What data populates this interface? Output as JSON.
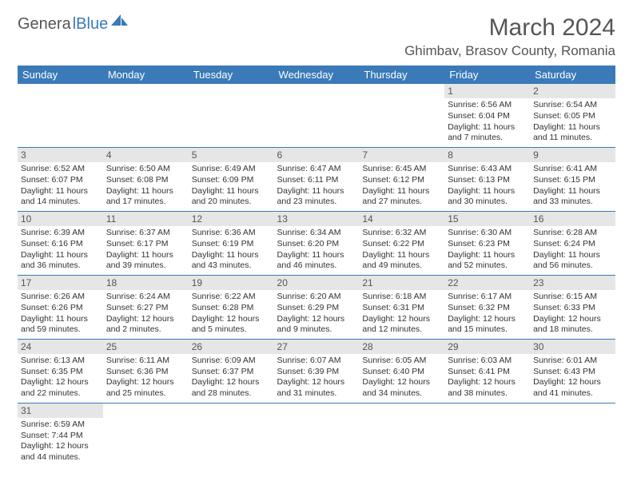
{
  "logo": {
    "part1": "Genera",
    "part2": "lBlue"
  },
  "title": "March 2024",
  "location": "Ghimbav, Brasov County, Romania",
  "colors": {
    "header_bg": "#3a7ab8",
    "header_text": "#ffffff",
    "daynum_bg": "#e6e6e6",
    "text": "#333333",
    "title_text": "#555555"
  },
  "weekdays": [
    "Sunday",
    "Monday",
    "Tuesday",
    "Wednesday",
    "Thursday",
    "Friday",
    "Saturday"
  ],
  "weeks": [
    [
      null,
      null,
      null,
      null,
      null,
      {
        "n": "1",
        "sunrise": "Sunrise: 6:56 AM",
        "sunset": "Sunset: 6:04 PM",
        "daylight": "Daylight: 11 hours and 7 minutes."
      },
      {
        "n": "2",
        "sunrise": "Sunrise: 6:54 AM",
        "sunset": "Sunset: 6:05 PM",
        "daylight": "Daylight: 11 hours and 11 minutes."
      }
    ],
    [
      {
        "n": "3",
        "sunrise": "Sunrise: 6:52 AM",
        "sunset": "Sunset: 6:07 PM",
        "daylight": "Daylight: 11 hours and 14 minutes."
      },
      {
        "n": "4",
        "sunrise": "Sunrise: 6:50 AM",
        "sunset": "Sunset: 6:08 PM",
        "daylight": "Daylight: 11 hours and 17 minutes."
      },
      {
        "n": "5",
        "sunrise": "Sunrise: 6:49 AM",
        "sunset": "Sunset: 6:09 PM",
        "daylight": "Daylight: 11 hours and 20 minutes."
      },
      {
        "n": "6",
        "sunrise": "Sunrise: 6:47 AM",
        "sunset": "Sunset: 6:11 PM",
        "daylight": "Daylight: 11 hours and 23 minutes."
      },
      {
        "n": "7",
        "sunrise": "Sunrise: 6:45 AM",
        "sunset": "Sunset: 6:12 PM",
        "daylight": "Daylight: 11 hours and 27 minutes."
      },
      {
        "n": "8",
        "sunrise": "Sunrise: 6:43 AM",
        "sunset": "Sunset: 6:13 PM",
        "daylight": "Daylight: 11 hours and 30 minutes."
      },
      {
        "n": "9",
        "sunrise": "Sunrise: 6:41 AM",
        "sunset": "Sunset: 6:15 PM",
        "daylight": "Daylight: 11 hours and 33 minutes."
      }
    ],
    [
      {
        "n": "10",
        "sunrise": "Sunrise: 6:39 AM",
        "sunset": "Sunset: 6:16 PM",
        "daylight": "Daylight: 11 hours and 36 minutes."
      },
      {
        "n": "11",
        "sunrise": "Sunrise: 6:37 AM",
        "sunset": "Sunset: 6:17 PM",
        "daylight": "Daylight: 11 hours and 39 minutes."
      },
      {
        "n": "12",
        "sunrise": "Sunrise: 6:36 AM",
        "sunset": "Sunset: 6:19 PM",
        "daylight": "Daylight: 11 hours and 43 minutes."
      },
      {
        "n": "13",
        "sunrise": "Sunrise: 6:34 AM",
        "sunset": "Sunset: 6:20 PM",
        "daylight": "Daylight: 11 hours and 46 minutes."
      },
      {
        "n": "14",
        "sunrise": "Sunrise: 6:32 AM",
        "sunset": "Sunset: 6:22 PM",
        "daylight": "Daylight: 11 hours and 49 minutes."
      },
      {
        "n": "15",
        "sunrise": "Sunrise: 6:30 AM",
        "sunset": "Sunset: 6:23 PM",
        "daylight": "Daylight: 11 hours and 52 minutes."
      },
      {
        "n": "16",
        "sunrise": "Sunrise: 6:28 AM",
        "sunset": "Sunset: 6:24 PM",
        "daylight": "Daylight: 11 hours and 56 minutes."
      }
    ],
    [
      {
        "n": "17",
        "sunrise": "Sunrise: 6:26 AM",
        "sunset": "Sunset: 6:26 PM",
        "daylight": "Daylight: 11 hours and 59 minutes."
      },
      {
        "n": "18",
        "sunrise": "Sunrise: 6:24 AM",
        "sunset": "Sunset: 6:27 PM",
        "daylight": "Daylight: 12 hours and 2 minutes."
      },
      {
        "n": "19",
        "sunrise": "Sunrise: 6:22 AM",
        "sunset": "Sunset: 6:28 PM",
        "daylight": "Daylight: 12 hours and 5 minutes."
      },
      {
        "n": "20",
        "sunrise": "Sunrise: 6:20 AM",
        "sunset": "Sunset: 6:29 PM",
        "daylight": "Daylight: 12 hours and 9 minutes."
      },
      {
        "n": "21",
        "sunrise": "Sunrise: 6:18 AM",
        "sunset": "Sunset: 6:31 PM",
        "daylight": "Daylight: 12 hours and 12 minutes."
      },
      {
        "n": "22",
        "sunrise": "Sunrise: 6:17 AM",
        "sunset": "Sunset: 6:32 PM",
        "daylight": "Daylight: 12 hours and 15 minutes."
      },
      {
        "n": "23",
        "sunrise": "Sunrise: 6:15 AM",
        "sunset": "Sunset: 6:33 PM",
        "daylight": "Daylight: 12 hours and 18 minutes."
      }
    ],
    [
      {
        "n": "24",
        "sunrise": "Sunrise: 6:13 AM",
        "sunset": "Sunset: 6:35 PM",
        "daylight": "Daylight: 12 hours and 22 minutes."
      },
      {
        "n": "25",
        "sunrise": "Sunrise: 6:11 AM",
        "sunset": "Sunset: 6:36 PM",
        "daylight": "Daylight: 12 hours and 25 minutes."
      },
      {
        "n": "26",
        "sunrise": "Sunrise: 6:09 AM",
        "sunset": "Sunset: 6:37 PM",
        "daylight": "Daylight: 12 hours and 28 minutes."
      },
      {
        "n": "27",
        "sunrise": "Sunrise: 6:07 AM",
        "sunset": "Sunset: 6:39 PM",
        "daylight": "Daylight: 12 hours and 31 minutes."
      },
      {
        "n": "28",
        "sunrise": "Sunrise: 6:05 AM",
        "sunset": "Sunset: 6:40 PM",
        "daylight": "Daylight: 12 hours and 34 minutes."
      },
      {
        "n": "29",
        "sunrise": "Sunrise: 6:03 AM",
        "sunset": "Sunset: 6:41 PM",
        "daylight": "Daylight: 12 hours and 38 minutes."
      },
      {
        "n": "30",
        "sunrise": "Sunrise: 6:01 AM",
        "sunset": "Sunset: 6:43 PM",
        "daylight": "Daylight: 12 hours and 41 minutes."
      }
    ],
    [
      {
        "n": "31",
        "sunrise": "Sunrise: 6:59 AM",
        "sunset": "Sunset: 7:44 PM",
        "daylight": "Daylight: 12 hours and 44 minutes."
      },
      null,
      null,
      null,
      null,
      null,
      null
    ]
  ]
}
